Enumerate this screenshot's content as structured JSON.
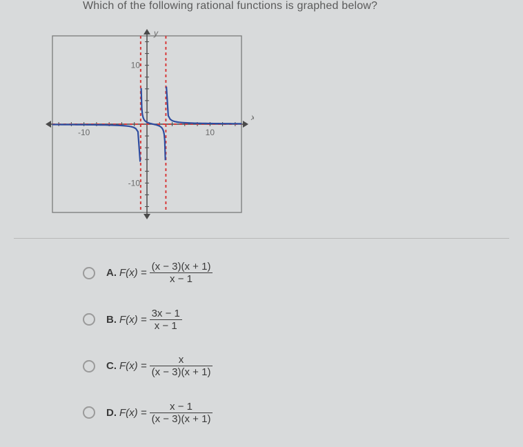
{
  "question": "Which of the following rational functions is graphed below?",
  "graph": {
    "type": "rational-function-plot",
    "xlim": [
      -15,
      15
    ],
    "ylim": [
      -15,
      15
    ],
    "xticks": [
      -10,
      10
    ],
    "yticks": [
      -10,
      10
    ],
    "xtick_labels": [
      "-10",
      "10"
    ],
    "ytick_labels": [
      "-10",
      "10"
    ],
    "axis_labels": {
      "x": "x",
      "y": "y"
    },
    "axis_color": "#4a4a4a",
    "tick_color": "#4a4a4a",
    "border_color": "#7a7a7a",
    "background_color": "#d8dadb",
    "asymptotes": {
      "color": "#d63b3b",
      "dash": "4,4",
      "width": 2,
      "vertical": [
        -1,
        3
      ],
      "horizontal": [
        0
      ]
    },
    "curve": {
      "color": "#2e4da0",
      "width": 2.2,
      "pieces": [
        {
          "domain": [
            -15,
            -1.08
          ],
          "samples": 40
        },
        {
          "domain": [
            -0.92,
            2.92
          ],
          "samples": 40
        },
        {
          "domain": [
            3.08,
            15
          ],
          "samples": 40
        }
      ],
      "clipY": [
        -15,
        15
      ],
      "zero_numerator": [
        1
      ],
      "poles": [
        -1,
        3
      ]
    },
    "arrowheads": true,
    "label_fontsize": 12,
    "label_color": "#6a6a6a"
  },
  "choices": [
    {
      "letter": "A.",
      "lhs": "F(x) =",
      "num": "(x − 3)(x + 1)",
      "den": "x − 1"
    },
    {
      "letter": "B.",
      "lhs": "F(x) =",
      "num": "3x − 1",
      "den": "x − 1"
    },
    {
      "letter": "C.",
      "lhs": "F(x) =",
      "num": "x",
      "den": "(x − 3)(x + 1)"
    },
    {
      "letter": "D.",
      "lhs": "F(x) =",
      "num": "x − 1",
      "den": "(x − 3)(x + 1)"
    }
  ]
}
